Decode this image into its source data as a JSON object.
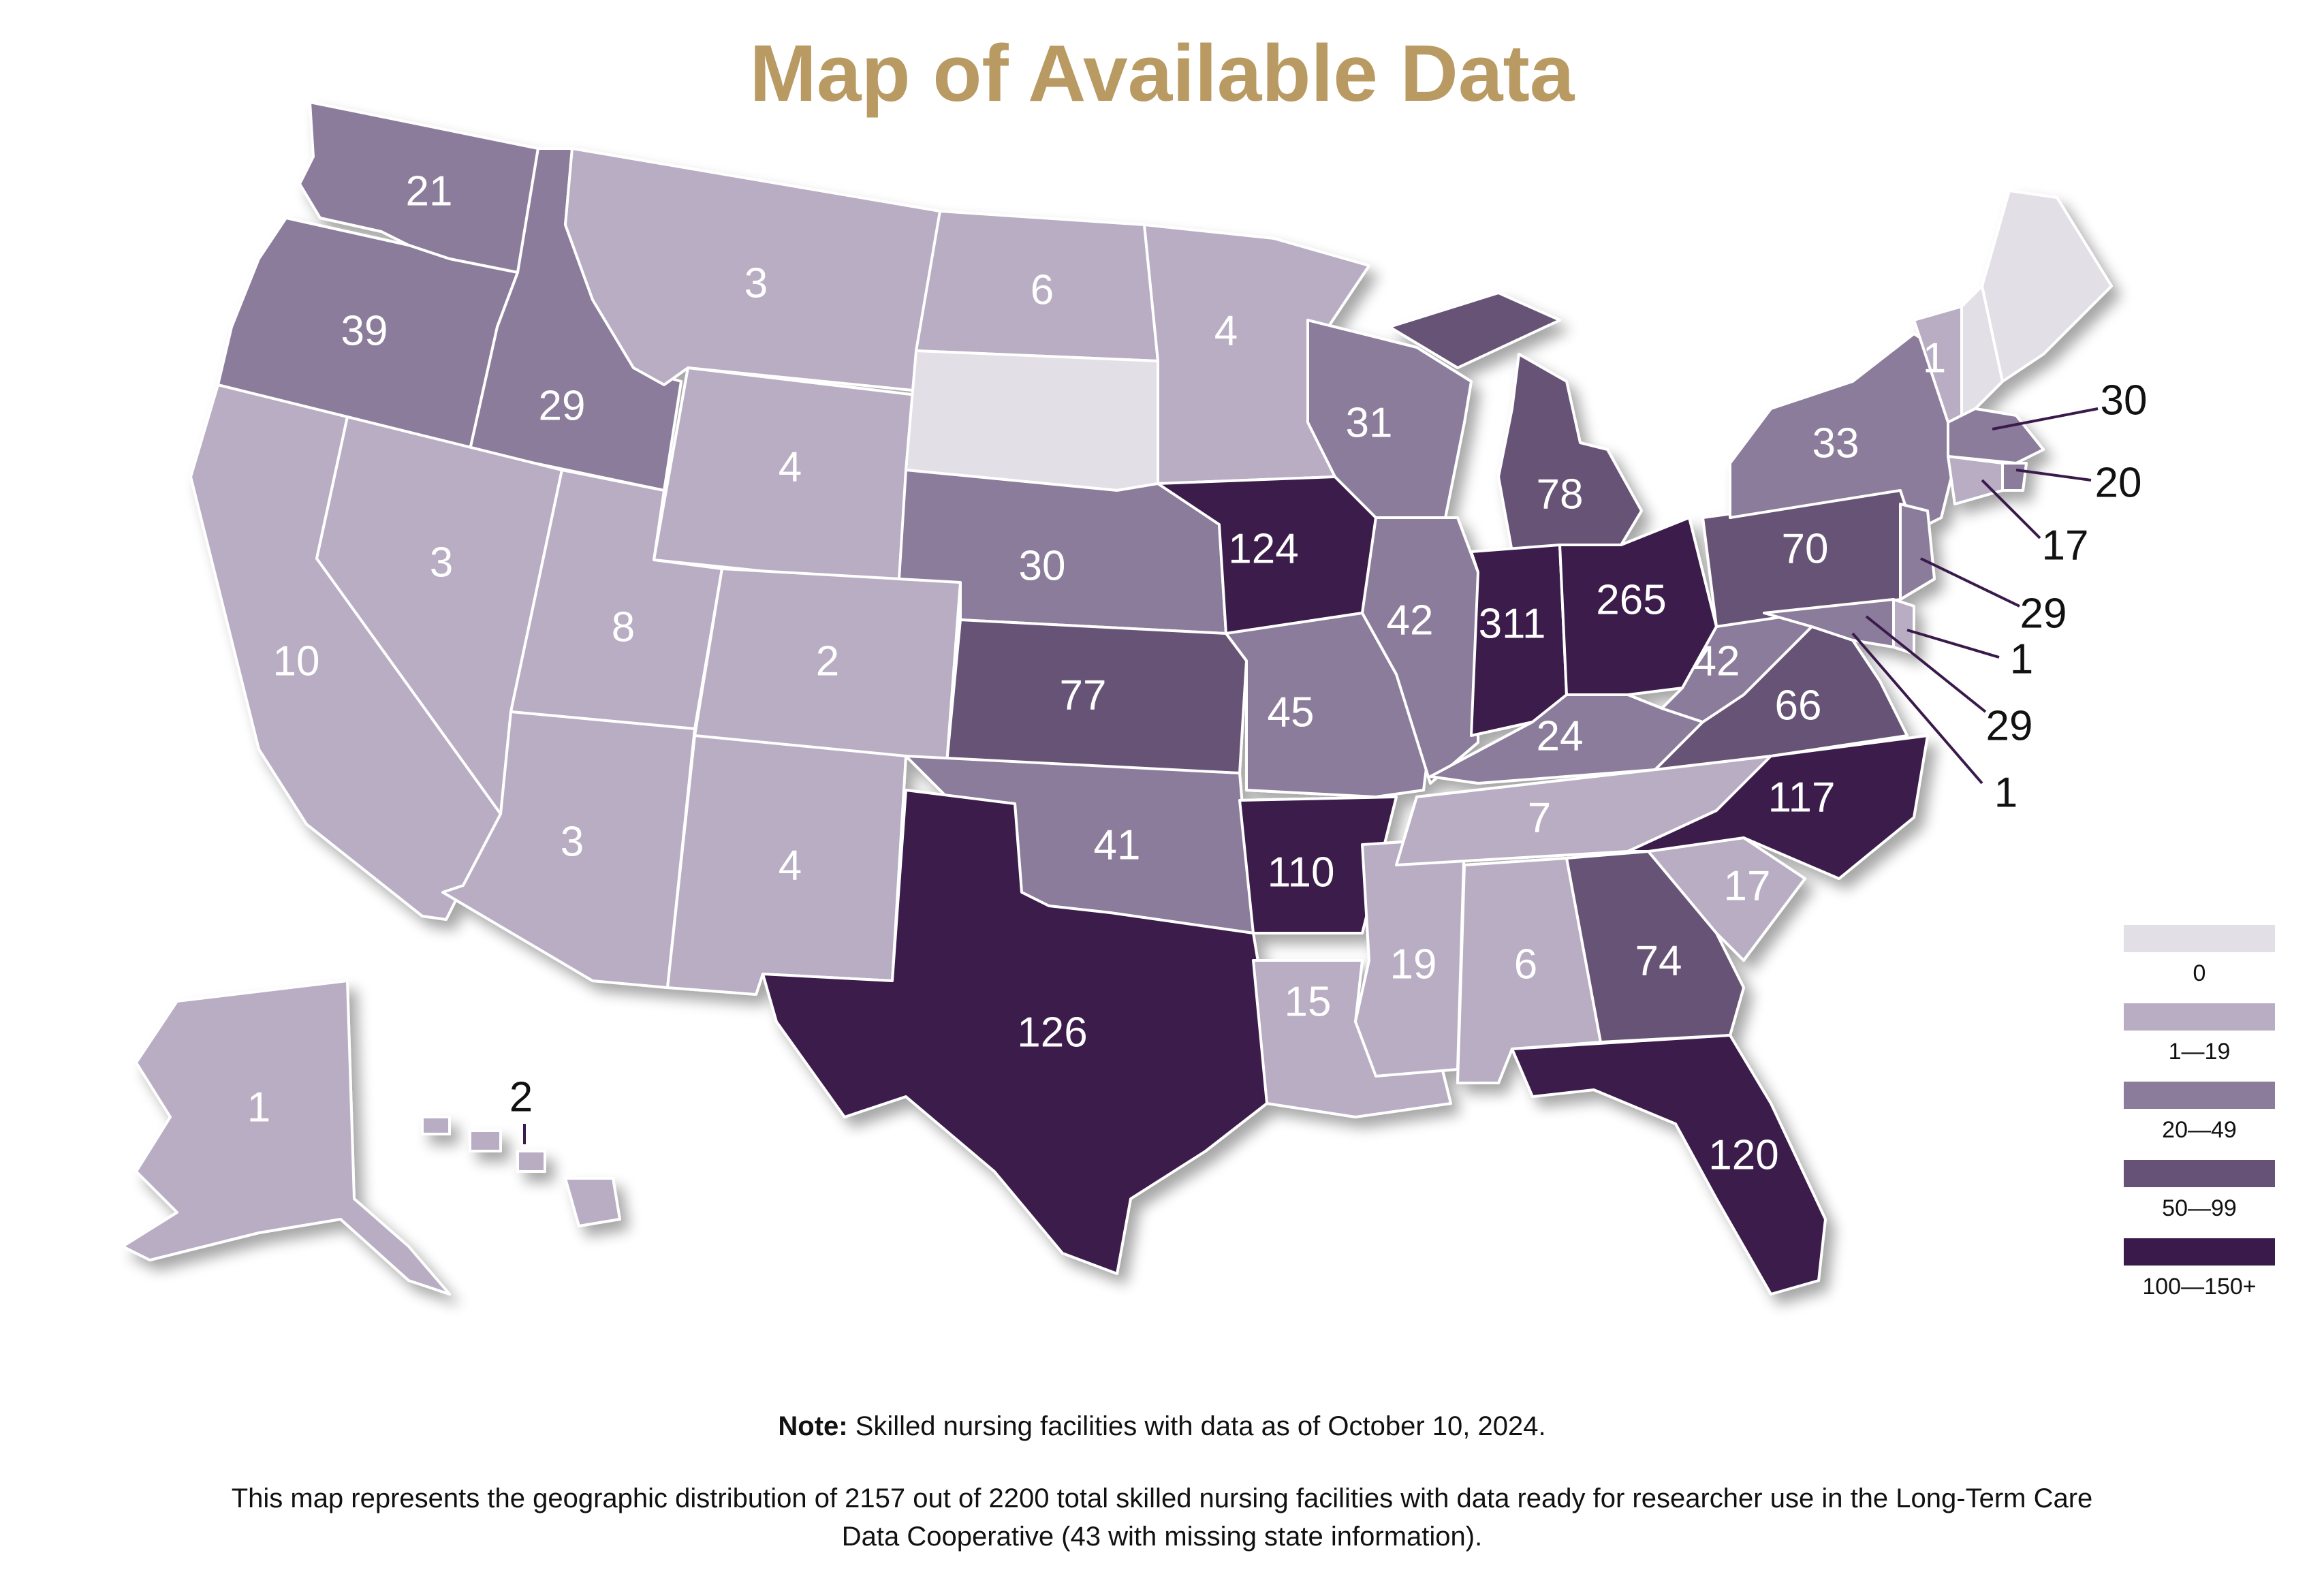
{
  "title": "Map of Available Data",
  "colors": {
    "title": "#b89a62",
    "bin_0": "#e2dfe7",
    "bin_1_19": "#b8adc3",
    "bin_20_49": "#8b7c9b",
    "bin_50_99": "#665276",
    "bin_100_plus": "#3a1a4b",
    "border": "#ffffff"
  },
  "legend": [
    {
      "label": "0",
      "color": "#e2dfe7"
    },
    {
      "label": "1—19",
      "color": "#b8adc3"
    },
    {
      "label": "20—49",
      "color": "#8b7c9b"
    },
    {
      "label": "50—99",
      "color": "#665276"
    },
    {
      "label": "100—150+",
      "color": "#3a1a4b"
    }
  ],
  "states": [
    {
      "code": "WA",
      "value": "21"
    },
    {
      "code": "OR",
      "value": "39"
    },
    {
      "code": "CA",
      "value": "10"
    },
    {
      "code": "ID",
      "value": "29"
    },
    {
      "code": "NV",
      "value": "3"
    },
    {
      "code": "MT",
      "value": "3"
    },
    {
      "code": "WY",
      "value": "4"
    },
    {
      "code": "UT",
      "value": "8"
    },
    {
      "code": "AZ",
      "value": "3"
    },
    {
      "code": "CO",
      "value": "2"
    },
    {
      "code": "NM",
      "value": "4"
    },
    {
      "code": "ND",
      "value": "6"
    },
    {
      "code": "SD",
      "value": ""
    },
    {
      "code": "NE",
      "value": "30"
    },
    {
      "code": "KS",
      "value": "77"
    },
    {
      "code": "OK",
      "value": "41"
    },
    {
      "code": "TX",
      "value": "126"
    },
    {
      "code": "MN",
      "value": "4"
    },
    {
      "code": "IA",
      "value": "124"
    },
    {
      "code": "MO",
      "value": "45"
    },
    {
      "code": "AR",
      "value": "110"
    },
    {
      "code": "LA",
      "value": "15"
    },
    {
      "code": "WI",
      "value": "31"
    },
    {
      "code": "IL",
      "value": "42"
    },
    {
      "code": "MS",
      "value": "19"
    },
    {
      "code": "MI",
      "value": "78"
    },
    {
      "code": "IN",
      "value": "311"
    },
    {
      "code": "OH",
      "value": "265"
    },
    {
      "code": "KY",
      "value": "24"
    },
    {
      "code": "TN",
      "value": "7"
    },
    {
      "code": "AL",
      "value": "6"
    },
    {
      "code": "GA",
      "value": "74"
    },
    {
      "code": "FL",
      "value": "120"
    },
    {
      "code": "SC",
      "value": "17"
    },
    {
      "code": "NC",
      "value": "117"
    },
    {
      "code": "VA",
      "value": "66"
    },
    {
      "code": "WV",
      "value": "42"
    },
    {
      "code": "PA",
      "value": "70"
    },
    {
      "code": "NY",
      "value": "33"
    },
    {
      "code": "VT",
      "value": "1"
    },
    {
      "code": "NH",
      "value": ""
    },
    {
      "code": "ME",
      "value": ""
    },
    {
      "code": "MA",
      "value": "30"
    },
    {
      "code": "RI",
      "value": "20"
    },
    {
      "code": "CT",
      "value": "17"
    },
    {
      "code": "NJ",
      "value": "29"
    },
    {
      "code": "DE",
      "value": "1"
    },
    {
      "code": "MD",
      "value": "29"
    },
    {
      "code": "DC",
      "value": "1"
    },
    {
      "code": "AK",
      "value": "1"
    },
    {
      "code": "HI",
      "value": "2"
    }
  ],
  "note_label": "Note:",
  "note_text": " Skilled nursing facilities with data as of October 10, 2024.",
  "description": "This map represents the geographic distribution of 2157 out of 2200 total skilled nursing facilities with data ready for researcher use in the Long-Term Care Data Cooperative (43 with missing state information)."
}
